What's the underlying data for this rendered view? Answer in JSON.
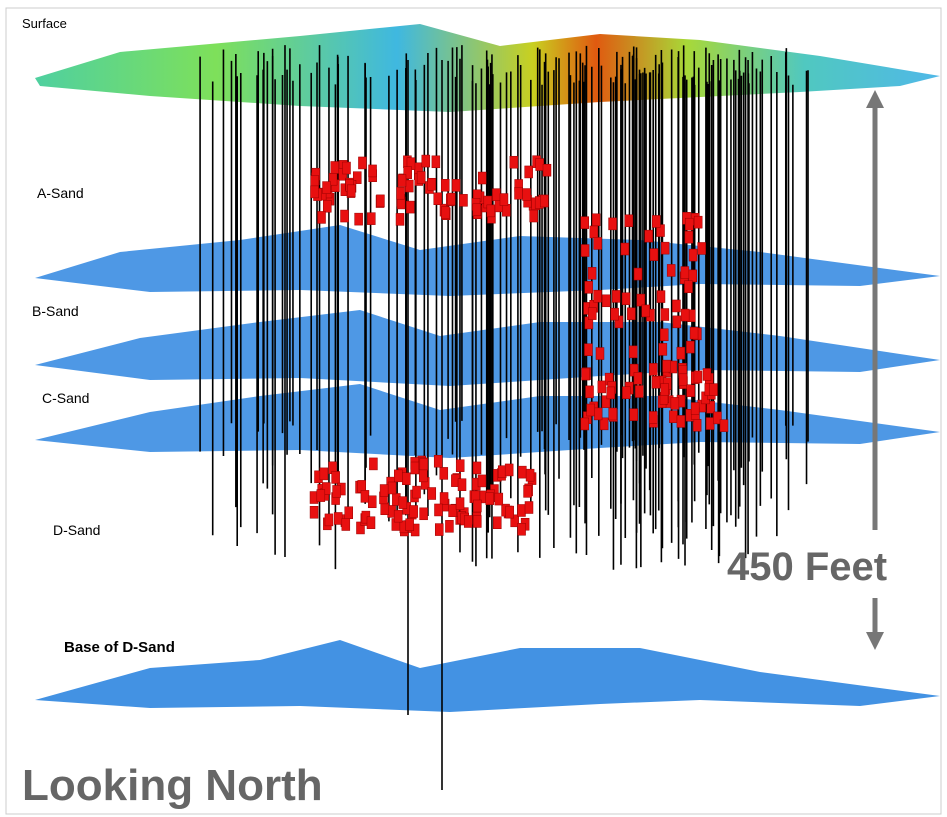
{
  "labels": {
    "surface": "Surface",
    "a_sand": "A-Sand",
    "b_sand": "B-Sand",
    "c_sand": "C-Sand",
    "d_sand": "D-Sand",
    "base": "Base of D-Sand"
  },
  "scale_label": "450 Feet",
  "view_label": "Looking North"
}
